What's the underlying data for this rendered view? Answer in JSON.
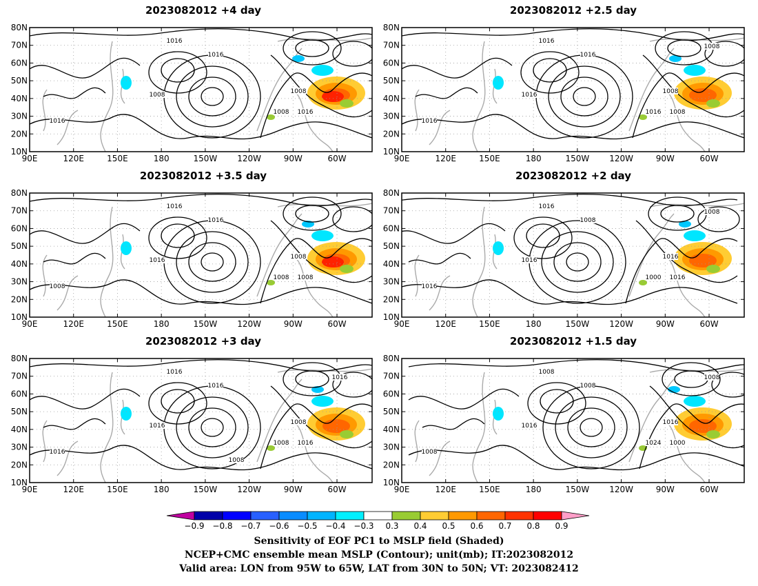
{
  "panels": [
    {
      "title": "2023082012  +4 day",
      "isobar_labels": [
        "1016",
        "1016",
        "1008",
        "1008",
        "1008",
        "1016",
        "1016"
      ],
      "red_core": true
    },
    {
      "title": "2023082012  +2.5 day",
      "isobar_labels": [
        "1016",
        "1016",
        "1016",
        "1008",
        "1016",
        "1008",
        "1016",
        "1008"
      ],
      "red_core": false
    },
    {
      "title": "2023082012  +3.5 day",
      "isobar_labels": [
        "1016",
        "1016",
        "1016",
        "1008",
        "1008",
        "1008",
        "1008"
      ],
      "red_core": true
    },
    {
      "title": "2023082012  +2 day",
      "isobar_labels": [
        "1016",
        "1008",
        "1016",
        "1016",
        "1000",
        "1016",
        "1016",
        "1008"
      ],
      "red_core": false
    },
    {
      "title": "2023082012  +3 day",
      "isobar_labels": [
        "1016",
        "1016",
        "1016",
        "1008",
        "1008",
        "1016",
        "1016",
        "1016",
        "1008"
      ],
      "red_core": false
    },
    {
      "title": "2023082012  +1.5 day",
      "isobar_labels": [
        "1008",
        "1008",
        "1016",
        "1016",
        "1024",
        "1000",
        "1008",
        "1008"
      ],
      "red_core": false
    }
  ],
  "axes": {
    "lat_labels": [
      "80N",
      "70N",
      "60N",
      "50N",
      "40N",
      "30N",
      "20N",
      "10N"
    ],
    "lon_labels": [
      "90E",
      "120E",
      "150E",
      "180",
      "150W",
      "120W",
      "90W",
      "60W"
    ]
  },
  "colorbar": {
    "labels": [
      "-0.9",
      "-0.8",
      "-0.7",
      "-0.6",
      "-0.5",
      "-0.4",
      "-0.3",
      "0.3",
      "0.4",
      "0.5",
      "0.6",
      "0.7",
      "0.8",
      "0.9"
    ],
    "colors": [
      "#0000a8",
      "#0000ff",
      "#2860ff",
      "#0a8cff",
      "#00b4ff",
      "#00f0ff",
      "#ffffff",
      "#99cc33",
      "#ffcc33",
      "#ff9900",
      "#ff6600",
      "#ff3300",
      "#ff0000"
    ],
    "low_end_color": "#c000a0",
    "high_end_color": "#ff9ec8"
  },
  "captions": [
    "Sensitivity of EOF PC1 to MSLP field (Shaded)",
    "NCEP+CMC ensemble mean MSLP (Contour); unit(mb); IT:2023082012",
    "Valid area: LON from 95W to 65W, LAT from 30N to 50N; VT: 2023082412"
  ]
}
